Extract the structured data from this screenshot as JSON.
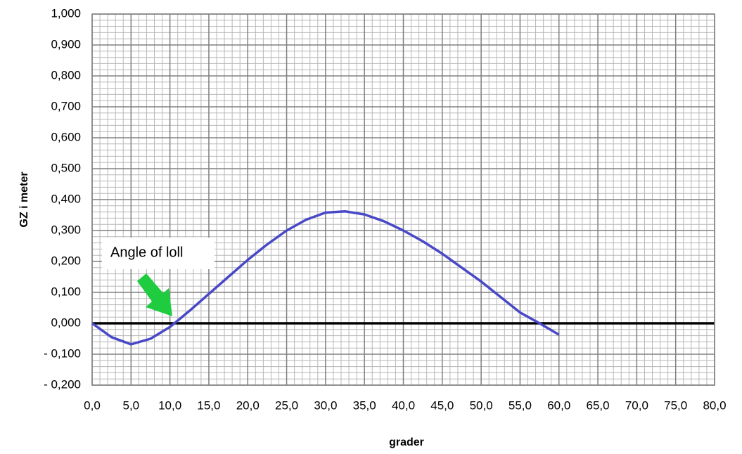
{
  "chart_data": {
    "type": "line",
    "xlabel": "grader",
    "ylabel": "GZ i meter",
    "annotation": "Angle of loll",
    "x": [
      0,
      2.5,
      5,
      7.5,
      10,
      12.5,
      15,
      17.5,
      20,
      22.5,
      25,
      27.5,
      30,
      32.5,
      35,
      37.5,
      40,
      42.5,
      45,
      47.5,
      50,
      52.5,
      55,
      57.5,
      60
    ],
    "series": [
      {
        "name": "GZ",
        "color": "#4848c8",
        "values": [
          0,
          -0.045,
          -0.068,
          -0.05,
          -0.012,
          0.04,
          0.095,
          0.15,
          0.205,
          0.255,
          0.3,
          0.335,
          0.358,
          0.362,
          0.352,
          0.33,
          0.3,
          0.265,
          0.225,
          0.18,
          0.135,
          0.085,
          0.035,
          0.0,
          -0.037
        ]
      }
    ],
    "xlim": [
      0,
      80
    ],
    "ylim": [
      -0.2,
      1.0
    ],
    "xticks": [
      {
        "value": 0,
        "label": "0,0"
      },
      {
        "value": 5,
        "label": "5,0"
      },
      {
        "value": 10,
        "label": "10,0"
      },
      {
        "value": 15,
        "label": "15,0"
      },
      {
        "value": 20,
        "label": "20,0"
      },
      {
        "value": 25,
        "label": "25,0"
      },
      {
        "value": 30,
        "label": "30,0"
      },
      {
        "value": 35,
        "label": "35,0"
      },
      {
        "value": 40,
        "label": "40,0"
      },
      {
        "value": 45,
        "label": "45,0"
      },
      {
        "value": 50,
        "label": "50,0"
      },
      {
        "value": 55,
        "label": "55,0"
      },
      {
        "value": 60,
        "label": "60,0"
      },
      {
        "value": 65,
        "label": "65,0"
      },
      {
        "value": 70,
        "label": "70,0"
      },
      {
        "value": 75,
        "label": "75,0"
      },
      {
        "value": 80,
        "label": "80,0"
      }
    ],
    "yticks": [
      {
        "value": -0.2,
        "label": "- 0,200"
      },
      {
        "value": -0.1,
        "label": "- 0,100"
      },
      {
        "value": 0,
        "label": "0,000"
      },
      {
        "value": 0.1,
        "label": "0,100"
      },
      {
        "value": 0.2,
        "label": "0,200"
      },
      {
        "value": 0.3,
        "label": "0,300"
      },
      {
        "value": 0.4,
        "label": "0,400"
      },
      {
        "value": 0.5,
        "label": "0,500"
      },
      {
        "value": 0.6,
        "label": "0,600"
      },
      {
        "value": 0.7,
        "label": "0,700"
      },
      {
        "value": 0.8,
        "label": "0,800"
      },
      {
        "value": 0.9,
        "label": "0,900"
      },
      {
        "value": 1.0,
        "label": "1,000"
      }
    ],
    "grid": true,
    "minor_grid": true
  }
}
